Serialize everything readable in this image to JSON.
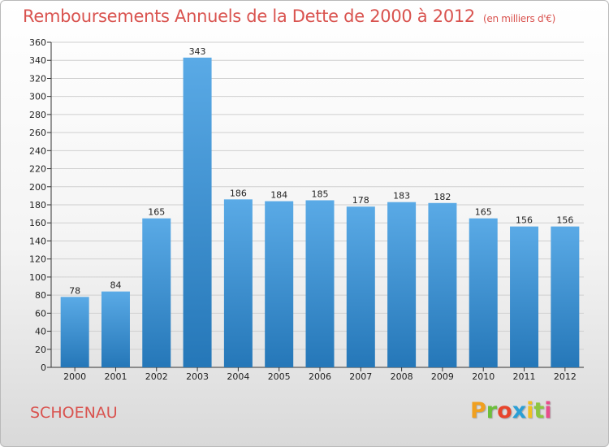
{
  "header": {
    "title": "Remboursements Annuels de la Dette de 2000 à 2012",
    "subtitle": "(en milliers d'€)"
  },
  "footer": {
    "commune": "SCHOENAU",
    "logo_letters": [
      "P",
      "r",
      "o",
      "x",
      "i",
      "t",
      "i"
    ],
    "logo_colors": [
      "#f0a020",
      "#6cbf3c",
      "#e8452c",
      "#2a9fd6",
      "#f0c020",
      "#8dc63f",
      "#e84c8b"
    ]
  },
  "colors": {
    "bar_top": "#5aaae6",
    "bar_bottom": "#2577b8",
    "grid": "#cfcfcf"
  },
  "chart_data": {
    "type": "bar",
    "title": "Remboursements Annuels de la Dette de 2000 à 2012",
    "xlabel": "",
    "ylabel": "",
    "categories": [
      "2000",
      "2001",
      "2002",
      "2003",
      "2004",
      "2005",
      "2006",
      "2007",
      "2008",
      "2009",
      "2010",
      "2011",
      "2012"
    ],
    "values": [
      78,
      84,
      165,
      343,
      186,
      184,
      185,
      178,
      183,
      182,
      165,
      156,
      156
    ],
    "ylim": [
      0,
      360
    ],
    "ytick_step": 20,
    "grid": true,
    "legend": "none"
  }
}
